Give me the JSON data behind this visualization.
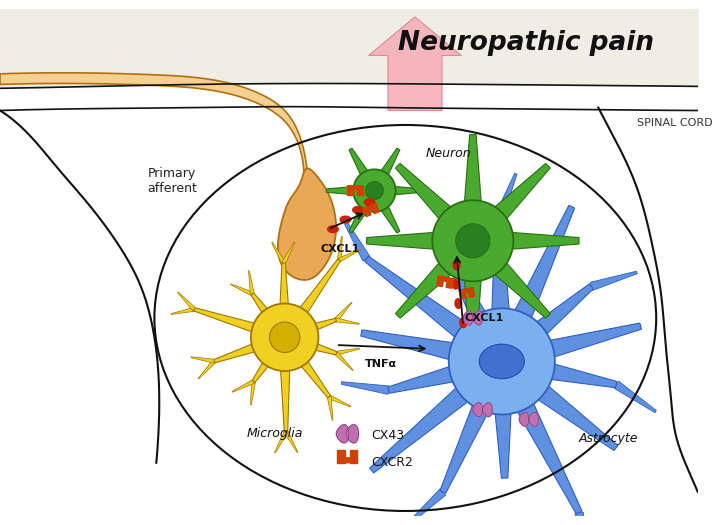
{
  "title": "Neuropathic pain",
  "spinal_cord_label": "SPINAL CORD",
  "primary_afferent_label": "Primary\nafferent",
  "neuron_label": "Neuron",
  "microglia_label": "Microglia",
  "astrocyte_label": "Astrocyte",
  "cxcl1_label1": "CXCL1",
  "cxcl1_label2": "CXCL1",
  "tnf_label": "TNFα",
  "cx43_label": "CX43",
  "cxcr2_label": "CXCR2",
  "bg_color": "#ffffff",
  "title_color": "#111111",
  "primary_afferent_color": "#e8a855",
  "primary_afferent_light": "#f5d090",
  "primary_afferent_outline": "#b07010",
  "neuron_color": "#4aaa30",
  "neuron_dark": "#2a7010",
  "neuron_nucleus": "#2a8020",
  "microglia_color": "#f0d020",
  "microglia_outline": "#a07800",
  "astrocyte_color": "#6090e0",
  "astrocyte_dark": "#3060c0",
  "astrocyte_nucleus": "#4070d0",
  "dot_color": "#cc2200",
  "cx43_color": "#c070b0",
  "cxcr2_color": "#d04000",
  "boundary_color": "#111111",
  "figsize": [
    7.23,
    5.25
  ],
  "dpi": 100
}
